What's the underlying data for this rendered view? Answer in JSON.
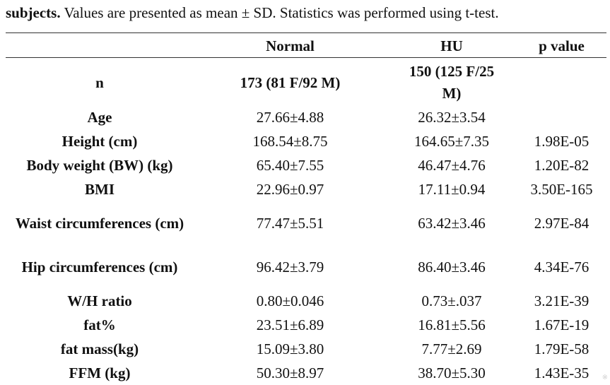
{
  "caption": {
    "bold": "subjects.",
    "text": " Values are presented as mean ± SD. Statistics was performed using t-test."
  },
  "table": {
    "headers": [
      "",
      "Normal",
      "HU",
      "p value"
    ],
    "rows": [
      {
        "label": "n",
        "normal": "173 (81 F/92 M)",
        "hu": "150 (125 F/25 M)",
        "p": ""
      },
      {
        "label": "Age",
        "normal": "27.66±4.88",
        "hu": "26.32±3.54",
        "p": ""
      },
      {
        "label": "Height (cm)",
        "normal": "168.54±8.75",
        "hu": "164.65±7.35",
        "p": "1.98E-05"
      },
      {
        "label": "Body weight (BW) (kg)",
        "normal": "65.40±7.55",
        "hu": "46.47±4.76",
        "p": "1.20E-82"
      },
      {
        "label": "BMI",
        "normal": "22.96±0.97",
        "hu": "17.11±0.94",
        "p": "3.50E-165"
      },
      {
        "label": "Waist circumferences (cm)",
        "normal": "77.47±5.51",
        "hu": "63.42±3.46",
        "p": "2.97E-84"
      },
      {
        "label": "Hip circumferences (cm)",
        "normal": "96.42±3.79",
        "hu": "86.40±3.46",
        "p": "4.34E-76"
      },
      {
        "label": "W/H ratio",
        "normal": "0.80±0.046",
        "hu": "0.73±.037",
        "p": "3.21E-39"
      },
      {
        "label": "fat%",
        "normal": "23.51±6.89",
        "hu": "16.81±5.56",
        "p": "1.67E-19"
      },
      {
        "label": "fat mass(kg)",
        "normal": "15.09±3.80",
        "hu": "7.77±2.69",
        "p": "1.79E-58"
      },
      {
        "label": "FFM (kg)",
        "normal": "50.30±8.97",
        "hu": "38.70±5.30",
        "p": "1.43E-35"
      }
    ]
  },
  "watermark": "※"
}
